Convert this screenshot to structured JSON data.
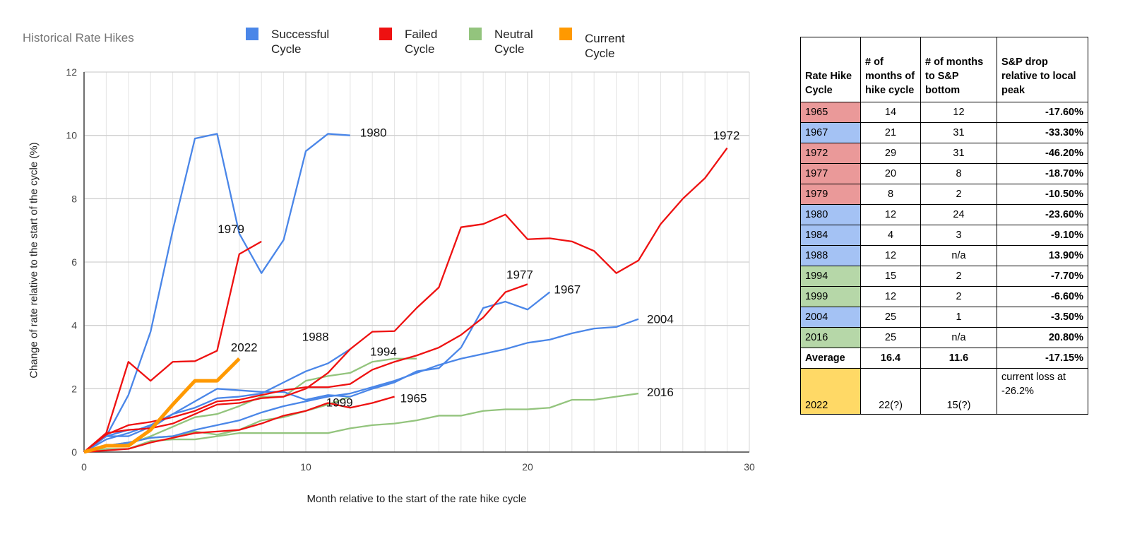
{
  "chart_data": {
    "type": "line",
    "title": "Historical Rate Hikes",
    "xlabel": "Month relative to the start of the rate hike cycle",
    "ylabel": "Change of rate relative to the start of the cycle (%)",
    "xlim": [
      0,
      30
    ],
    "ylim": [
      0,
      12
    ],
    "xticks": [
      "0",
      "10",
      "20",
      "30"
    ],
    "yticks": [
      "0",
      "2",
      "4",
      "6",
      "8",
      "10",
      "12"
    ],
    "grid": true,
    "legend_position": "top",
    "legend": [
      {
        "label": "Successful Cycle",
        "color": "#4a86e8"
      },
      {
        "label": "Failed Cycle",
        "color": "#ee1111"
      },
      {
        "label": "Neutral Cycle",
        "color": "#93c47d"
      },
      {
        "label": "Current Cycle",
        "color": "#ff9900"
      }
    ],
    "series": [
      {
        "name": "1965",
        "type": "failed",
        "values": [
          0,
          0.05,
          0.1,
          0.3,
          0.45,
          0.6,
          0.65,
          0.7,
          0.9,
          1.15,
          1.3,
          1.55,
          1.4,
          1.55,
          1.75
        ]
      },
      {
        "name": "1967",
        "type": "successful",
        "values": [
          0,
          0.5,
          0.7,
          0.75,
          1.2,
          1.6,
          2.0,
          1.95,
          1.9,
          1.9,
          1.65,
          1.8,
          1.75,
          2.0,
          2.2,
          2.55,
          2.65,
          3.3,
          4.55,
          4.75,
          4.5,
          5.05
        ]
      },
      {
        "name": "1972",
        "type": "failed",
        "values": [
          0,
          0.6,
          0.7,
          0.75,
          0.9,
          1.2,
          1.5,
          1.55,
          1.7,
          1.75,
          2.0,
          2.5,
          3.25,
          3.8,
          3.82,
          4.55,
          5.2,
          7.1,
          7.2,
          7.5,
          6.72,
          6.75,
          6.65,
          6.35,
          5.65,
          6.05,
          7.2,
          8.0,
          8.65,
          9.6
        ]
      },
      {
        "name": "1977",
        "type": "failed",
        "values": [
          0,
          0.55,
          0.85,
          0.95,
          1.1,
          1.3,
          1.6,
          1.65,
          1.8,
          1.95,
          2.05,
          2.05,
          2.15,
          2.6,
          2.85,
          3.05,
          3.3,
          3.7,
          4.25,
          5.05,
          5.3
        ]
      },
      {
        "name": "1979",
        "type": "failed",
        "values": [
          0,
          0.6,
          2.85,
          2.25,
          2.85,
          2.87,
          3.2,
          6.25,
          6.65
        ]
      },
      {
        "name": "1980",
        "type": "successful",
        "values": [
          0,
          0.5,
          1.8,
          3.8,
          7.0,
          9.9,
          10.05,
          6.9,
          5.65,
          6.7,
          9.5,
          10.05,
          10.0
        ]
      },
      {
        "name": "1984",
        "type": "successful",
        "values": [
          0,
          0.4,
          0.6,
          0.85,
          1.2
        ]
      },
      {
        "name": "1988",
        "type": "successful",
        "values": [
          0,
          0.5,
          0.5,
          0.8,
          1.2,
          1.4,
          1.7,
          1.75,
          1.85,
          2.2,
          2.55,
          2.8,
          3.25
        ]
      },
      {
        "name": "1994",
        "type": "neutral",
        "values": [
          0,
          0.2,
          0.25,
          0.5,
          0.8,
          1.1,
          1.2,
          1.45,
          1.75,
          1.75,
          2.25,
          2.4,
          2.5,
          2.85,
          2.95,
          2.95
        ]
      },
      {
        "name": "1999",
        "type": "neutral",
        "values": [
          0,
          0.2,
          0.3,
          0.45,
          0.5,
          0.65,
          0.55,
          0.7,
          1.0,
          1.1,
          1.3,
          1.5,
          1.75
        ]
      },
      {
        "name": "2004",
        "type": "successful",
        "values": [
          0,
          0.2,
          0.3,
          0.45,
          0.5,
          0.7,
          0.85,
          1.0,
          1.25,
          1.45,
          1.6,
          1.75,
          1.85,
          2.05,
          2.25,
          2.5,
          2.75,
          2.95,
          3.1,
          3.25,
          3.45,
          3.55,
          3.75,
          3.9,
          3.95,
          4.2
        ]
      },
      {
        "name": "2016",
        "type": "neutral",
        "values": [
          0,
          0.1,
          0.1,
          0.35,
          0.4,
          0.4,
          0.5,
          0.6,
          0.6,
          0.6,
          0.6,
          0.6,
          0.75,
          0.85,
          0.9,
          1.0,
          1.15,
          1.15,
          1.3,
          1.35,
          1.35,
          1.4,
          1.65,
          1.65,
          1.75,
          1.85
        ]
      },
      {
        "name": "2022",
        "type": "current",
        "values": [
          0,
          0.2,
          0.2,
          0.7,
          1.5,
          2.25,
          2.25,
          2.95
        ]
      }
    ],
    "labeled_series": [
      "1965",
      "1967",
      "1972",
      "1977",
      "1979",
      "1980",
      "1988",
      "1994",
      "1999",
      "2004",
      "2016",
      "2022"
    ]
  },
  "colors": {
    "successful": "#4a86e8",
    "failed": "#ee1111",
    "neutral": "#93c47d",
    "current": "#ff9900",
    "row_failed": "#ea9999",
    "row_successful": "#a4c2f4",
    "row_neutral": "#b6d7a8",
    "row_current": "#ffd966"
  },
  "table": {
    "headers": [
      "Rate Hike Cycle",
      "# of months of hike cycle",
      "# of months to S&P bottom",
      "S&P drop relative to local peak"
    ],
    "rows": [
      {
        "cycle": "1965",
        "type": "failed",
        "months": "14",
        "to_bottom": "12",
        "drop": "-17.60%"
      },
      {
        "cycle": "1967",
        "type": "successful",
        "months": "21",
        "to_bottom": "31",
        "drop": "-33.30%"
      },
      {
        "cycle": "1972",
        "type": "failed",
        "months": "29",
        "to_bottom": "31",
        "drop": "-46.20%"
      },
      {
        "cycle": "1977",
        "type": "failed",
        "months": "20",
        "to_bottom": "8",
        "drop": "-18.70%"
      },
      {
        "cycle": "1979",
        "type": "failed",
        "months": "8",
        "to_bottom": "2",
        "drop": "-10.50%"
      },
      {
        "cycle": "1980",
        "type": "successful",
        "months": "12",
        "to_bottom": "24",
        "drop": "-23.60%"
      },
      {
        "cycle": "1984",
        "type": "successful",
        "months": "4",
        "to_bottom": "3",
        "drop": "-9.10%"
      },
      {
        "cycle": "1988",
        "type": "successful",
        "months": "12",
        "to_bottom": "n/a",
        "drop": "13.90%"
      },
      {
        "cycle": "1994",
        "type": "neutral",
        "months": "15",
        "to_bottom": "2",
        "drop": "-7.70%"
      },
      {
        "cycle": "1999",
        "type": "neutral",
        "months": "12",
        "to_bottom": "2",
        "drop": "-6.60%"
      },
      {
        "cycle": "2004",
        "type": "successful",
        "months": "25",
        "to_bottom": "1",
        "drop": "-3.50%"
      },
      {
        "cycle": "2016",
        "type": "neutral",
        "months": "25",
        "to_bottom": "n/a",
        "drop": "20.80%"
      }
    ],
    "average": {
      "cycle": "Average",
      "months": "16.4",
      "to_bottom": "11.6",
      "drop": "-17.15%"
    },
    "current": {
      "cycle": "2022",
      "months": "22(?)",
      "to_bottom": "15(?)",
      "drop": "current loss at -26.2%"
    }
  }
}
